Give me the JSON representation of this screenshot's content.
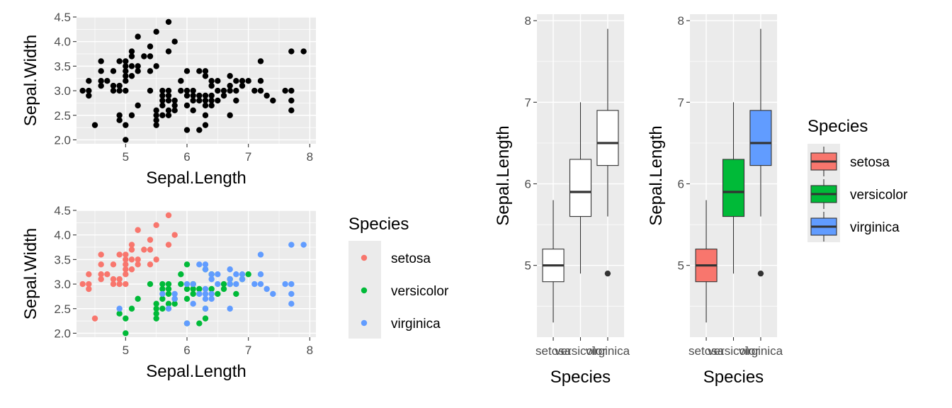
{
  "chart_data": [
    {
      "type": "scatter",
      "title": "",
      "xlabel": "Sepal.Length",
      "ylabel": "Sepal.Width",
      "xlim": [
        4.2,
        8.1
      ],
      "ylim": [
        1.92,
        4.5
      ],
      "xticks": [
        "5",
        "6",
        "7",
        "8"
      ],
      "yticks": [
        "2.0",
        "2.5",
        "3.0",
        "3.5",
        "4.0",
        "4.5"
      ],
      "grid": true,
      "color": "#000000",
      "series": [
        {
          "points": [
            [
              4.3,
              3.0
            ],
            [
              4.4,
              2.9
            ],
            [
              4.4,
              3.0
            ],
            [
              4.4,
              3.2
            ],
            [
              4.5,
              2.3
            ],
            [
              4.6,
              3.1
            ],
            [
              4.6,
              3.2
            ],
            [
              4.6,
              3.4
            ],
            [
              4.6,
              3.6
            ],
            [
              4.7,
              3.2
            ],
            [
              4.8,
              3.0
            ],
            [
              4.8,
              3.1
            ],
            [
              4.8,
              3.4
            ],
            [
              4.9,
              2.4
            ],
            [
              4.9,
              2.5
            ],
            [
              4.9,
              3.0
            ],
            [
              4.9,
              3.1
            ],
            [
              4.9,
              3.6
            ],
            [
              5.0,
              2.0
            ],
            [
              5.0,
              2.3
            ],
            [
              5.0,
              3.0
            ],
            [
              5.0,
              3.2
            ],
            [
              5.0,
              3.3
            ],
            [
              5.0,
              3.4
            ],
            [
              5.0,
              3.5
            ],
            [
              5.0,
              3.6
            ],
            [
              5.1,
              2.5
            ],
            [
              5.1,
              3.3
            ],
            [
              5.1,
              3.5
            ],
            [
              5.1,
              3.7
            ],
            [
              5.1,
              3.8
            ],
            [
              5.2,
              2.7
            ],
            [
              5.2,
              3.4
            ],
            [
              5.2,
              3.5
            ],
            [
              5.2,
              4.1
            ],
            [
              5.3,
              3.7
            ],
            [
              5.4,
              3.0
            ],
            [
              5.4,
              3.4
            ],
            [
              5.4,
              3.7
            ],
            [
              5.4,
              3.9
            ],
            [
              5.5,
              2.3
            ],
            [
              5.5,
              2.4
            ],
            [
              5.5,
              2.5
            ],
            [
              5.5,
              2.6
            ],
            [
              5.5,
              3.5
            ],
            [
              5.5,
              4.2
            ],
            [
              5.6,
              2.5
            ],
            [
              5.6,
              2.7
            ],
            [
              5.6,
              2.8
            ],
            [
              5.6,
              2.9
            ],
            [
              5.6,
              3.0
            ],
            [
              5.7,
              2.5
            ],
            [
              5.7,
              2.6
            ],
            [
              5.7,
              2.8
            ],
            [
              5.7,
              2.9
            ],
            [
              5.7,
              3.0
            ],
            [
              5.7,
              3.8
            ],
            [
              5.7,
              4.4
            ],
            [
              5.8,
              2.6
            ],
            [
              5.8,
              2.7
            ],
            [
              5.8,
              2.8
            ],
            [
              5.8,
              4.0
            ],
            [
              5.9,
              3.0
            ],
            [
              5.9,
              3.2
            ],
            [
              6.0,
              2.2
            ],
            [
              6.0,
              2.7
            ],
            [
              6.0,
              2.9
            ],
            [
              6.0,
              3.0
            ],
            [
              6.0,
              3.4
            ],
            [
              6.1,
              2.6
            ],
            [
              6.1,
              2.8
            ],
            [
              6.1,
              2.9
            ],
            [
              6.1,
              3.0
            ],
            [
              6.2,
              2.2
            ],
            [
              6.2,
              2.8
            ],
            [
              6.2,
              2.9
            ],
            [
              6.2,
              3.4
            ],
            [
              6.3,
              2.3
            ],
            [
              6.3,
              2.5
            ],
            [
              6.3,
              2.7
            ],
            [
              6.3,
              2.8
            ],
            [
              6.3,
              2.9
            ],
            [
              6.3,
              3.3
            ],
            [
              6.3,
              3.4
            ],
            [
              6.4,
              2.7
            ],
            [
              6.4,
              2.8
            ],
            [
              6.4,
              2.9
            ],
            [
              6.4,
              3.1
            ],
            [
              6.4,
              3.2
            ],
            [
              6.5,
              2.8
            ],
            [
              6.5,
              3.0
            ],
            [
              6.5,
              3.2
            ],
            [
              6.6,
              2.9
            ],
            [
              6.6,
              3.0
            ],
            [
              6.7,
              2.5
            ],
            [
              6.7,
              3.0
            ],
            [
              6.7,
              3.1
            ],
            [
              6.7,
              3.3
            ],
            [
              6.8,
              2.8
            ],
            [
              6.8,
              3.0
            ],
            [
              6.8,
              3.2
            ],
            [
              6.9,
              3.1
            ],
            [
              6.9,
              3.2
            ],
            [
              7.0,
              3.2
            ],
            [
              7.1,
              3.0
            ],
            [
              7.2,
              3.0
            ],
            [
              7.2,
              3.2
            ],
            [
              7.2,
              3.6
            ],
            [
              7.3,
              2.9
            ],
            [
              7.4,
              2.8
            ],
            [
              7.6,
              3.0
            ],
            [
              7.7,
              2.6
            ],
            [
              7.7,
              2.8
            ],
            [
              7.7,
              3.0
            ],
            [
              7.7,
              3.8
            ],
            [
              7.9,
              3.8
            ]
          ]
        }
      ]
    },
    {
      "type": "scatter",
      "title": "",
      "xlabel": "Sepal.Length",
      "ylabel": "Sepal.Width",
      "xlim": [
        4.2,
        8.1
      ],
      "ylim": [
        1.92,
        4.5
      ],
      "xticks": [
        "5",
        "6",
        "7",
        "8"
      ],
      "yticks": [
        "2.0",
        "2.5",
        "3.0",
        "3.5",
        "4.0",
        "4.5"
      ],
      "grid": true,
      "legend": {
        "title": "Species",
        "placement": "right"
      },
      "series": [
        {
          "name": "setosa",
          "color": "#F8766D",
          "points": [
            [
              4.3,
              3.0
            ],
            [
              4.4,
              2.9
            ],
            [
              4.4,
              3.0
            ],
            [
              4.4,
              3.2
            ],
            [
              4.5,
              2.3
            ],
            [
              4.6,
              3.1
            ],
            [
              4.6,
              3.2
            ],
            [
              4.6,
              3.4
            ],
            [
              4.6,
              3.6
            ],
            [
              4.7,
              3.2
            ],
            [
              4.8,
              3.0
            ],
            [
              4.8,
              3.1
            ],
            [
              4.8,
              3.4
            ],
            [
              4.9,
              3.0
            ],
            [
              4.9,
              3.1
            ],
            [
              4.9,
              3.6
            ],
            [
              5.0,
              3.0
            ],
            [
              5.0,
              3.2
            ],
            [
              5.0,
              3.3
            ],
            [
              5.0,
              3.4
            ],
            [
              5.0,
              3.5
            ],
            [
              5.0,
              3.6
            ],
            [
              5.1,
              3.3
            ],
            [
              5.1,
              3.5
            ],
            [
              5.1,
              3.7
            ],
            [
              5.1,
              3.8
            ],
            [
              5.2,
              3.4
            ],
            [
              5.2,
              3.5
            ],
            [
              5.2,
              4.1
            ],
            [
              5.3,
              3.7
            ],
            [
              5.4,
              3.4
            ],
            [
              5.4,
              3.7
            ],
            [
              5.4,
              3.9
            ],
            [
              5.5,
              3.5
            ],
            [
              5.5,
              4.2
            ],
            [
              5.7,
              3.8
            ],
            [
              5.7,
              4.4
            ],
            [
              5.8,
              4.0
            ]
          ]
        },
        {
          "name": "versicolor",
          "color": "#00BA38",
          "points": [
            [
              4.9,
              2.4
            ],
            [
              5.0,
              2.0
            ],
            [
              5.0,
              2.3
            ],
            [
              5.1,
              2.5
            ],
            [
              5.2,
              2.7
            ],
            [
              5.4,
              3.0
            ],
            [
              5.5,
              2.3
            ],
            [
              5.5,
              2.4
            ],
            [
              5.5,
              2.5
            ],
            [
              5.5,
              2.6
            ],
            [
              5.6,
              2.5
            ],
            [
              5.6,
              2.7
            ],
            [
              5.6,
              2.9
            ],
            [
              5.6,
              3.0
            ],
            [
              5.7,
              2.6
            ],
            [
              5.7,
              2.8
            ],
            [
              5.7,
              2.9
            ],
            [
              5.7,
              3.0
            ],
            [
              5.8,
              2.6
            ],
            [
              5.8,
              2.7
            ],
            [
              5.9,
              3.0
            ],
            [
              5.9,
              3.2
            ],
            [
              6.0,
              2.2
            ],
            [
              6.0,
              2.7
            ],
            [
              6.0,
              2.9
            ],
            [
              6.0,
              3.4
            ],
            [
              6.1,
              2.8
            ],
            [
              6.1,
              2.9
            ],
            [
              6.1,
              3.0
            ],
            [
              6.2,
              2.2
            ],
            [
              6.2,
              2.9
            ],
            [
              6.3,
              2.3
            ],
            [
              6.3,
              2.5
            ],
            [
              6.3,
              3.3
            ],
            [
              6.4,
              2.9
            ],
            [
              6.4,
              3.2
            ],
            [
              6.5,
              2.8
            ],
            [
              6.6,
              2.9
            ],
            [
              6.6,
              3.0
            ],
            [
              6.7,
              3.0
            ],
            [
              6.7,
              3.1
            ],
            [
              6.8,
              2.8
            ],
            [
              6.9,
              3.1
            ],
            [
              7.0,
              3.2
            ]
          ]
        },
        {
          "name": "virginica",
          "color": "#619CFF",
          "points": [
            [
              4.9,
              2.5
            ],
            [
              5.6,
              2.8
            ],
            [
              5.7,
              2.5
            ],
            [
              5.8,
              2.7
            ],
            [
              5.8,
              2.8
            ],
            [
              6.0,
              2.2
            ],
            [
              6.0,
              3.0
            ],
            [
              6.1,
              2.6
            ],
            [
              6.1,
              3.0
            ],
            [
              6.2,
              2.8
            ],
            [
              6.2,
              3.4
            ],
            [
              6.3,
              2.5
            ],
            [
              6.3,
              2.7
            ],
            [
              6.3,
              2.8
            ],
            [
              6.3,
              2.9
            ],
            [
              6.3,
              3.3
            ],
            [
              6.3,
              3.4
            ],
            [
              6.4,
              2.7
            ],
            [
              6.4,
              2.8
            ],
            [
              6.4,
              3.1
            ],
            [
              6.4,
              3.2
            ],
            [
              6.5,
              3.0
            ],
            [
              6.5,
              3.2
            ],
            [
              6.7,
              2.5
            ],
            [
              6.7,
              3.0
            ],
            [
              6.7,
              3.1
            ],
            [
              6.7,
              3.3
            ],
            [
              6.8,
              3.0
            ],
            [
              6.8,
              3.2
            ],
            [
              6.9,
              3.1
            ],
            [
              6.9,
              3.2
            ],
            [
              7.1,
              3.0
            ],
            [
              7.2,
              3.0
            ],
            [
              7.2,
              3.2
            ],
            [
              7.2,
              3.6
            ],
            [
              7.3,
              2.9
            ],
            [
              7.4,
              2.8
            ],
            [
              7.6,
              3.0
            ],
            [
              7.7,
              2.6
            ],
            [
              7.7,
              2.8
            ],
            [
              7.7,
              3.0
            ],
            [
              7.7,
              3.8
            ],
            [
              7.9,
              3.8
            ]
          ]
        }
      ]
    },
    {
      "type": "box",
      "title": "",
      "xlabel": "Species",
      "ylabel": "Sepal.Length",
      "ylim": [
        4.12,
        8.08
      ],
      "yticks": [
        "5",
        "6",
        "7",
        "8"
      ],
      "grid": true,
      "categories": [
        "setosa",
        "versicolor",
        "virginica"
      ],
      "fills": [
        "#FFFFFF",
        "#FFFFFF",
        "#FFFFFF"
      ],
      "boxes": [
        {
          "min": 4.3,
          "q1": 4.8,
          "median": 5.0,
          "q3": 5.2,
          "max": 5.8,
          "outliers": []
        },
        {
          "min": 4.9,
          "q1": 5.6,
          "median": 5.9,
          "q3": 6.3,
          "max": 7.0,
          "outliers": []
        },
        {
          "min": 5.6,
          "q1": 6.225,
          "median": 6.5,
          "q3": 6.9,
          "max": 7.9,
          "outliers": [
            4.9
          ]
        }
      ]
    },
    {
      "type": "box",
      "title": "",
      "xlabel": "Species",
      "ylabel": "Sepal.Length",
      "ylim": [
        4.12,
        8.08
      ],
      "yticks": [
        "5",
        "6",
        "7",
        "8"
      ],
      "grid": true,
      "categories": [
        "setosa",
        "versicolor",
        "virginica"
      ],
      "fills": [
        "#F8766D",
        "#00BA38",
        "#619CFF"
      ],
      "legend": {
        "title": "Species",
        "placement": "right",
        "items": [
          "setosa",
          "versicolor",
          "virginica"
        ]
      },
      "boxes": [
        {
          "min": 4.3,
          "q1": 4.8,
          "median": 5.0,
          "q3": 5.2,
          "max": 5.8,
          "outliers": []
        },
        {
          "min": 4.9,
          "q1": 5.6,
          "median": 5.9,
          "q3": 6.3,
          "max": 7.0,
          "outliers": []
        },
        {
          "min": 5.6,
          "q1": 6.225,
          "median": 6.5,
          "q3": 6.9,
          "max": 7.9,
          "outliers": [
            4.9
          ]
        }
      ]
    }
  ]
}
